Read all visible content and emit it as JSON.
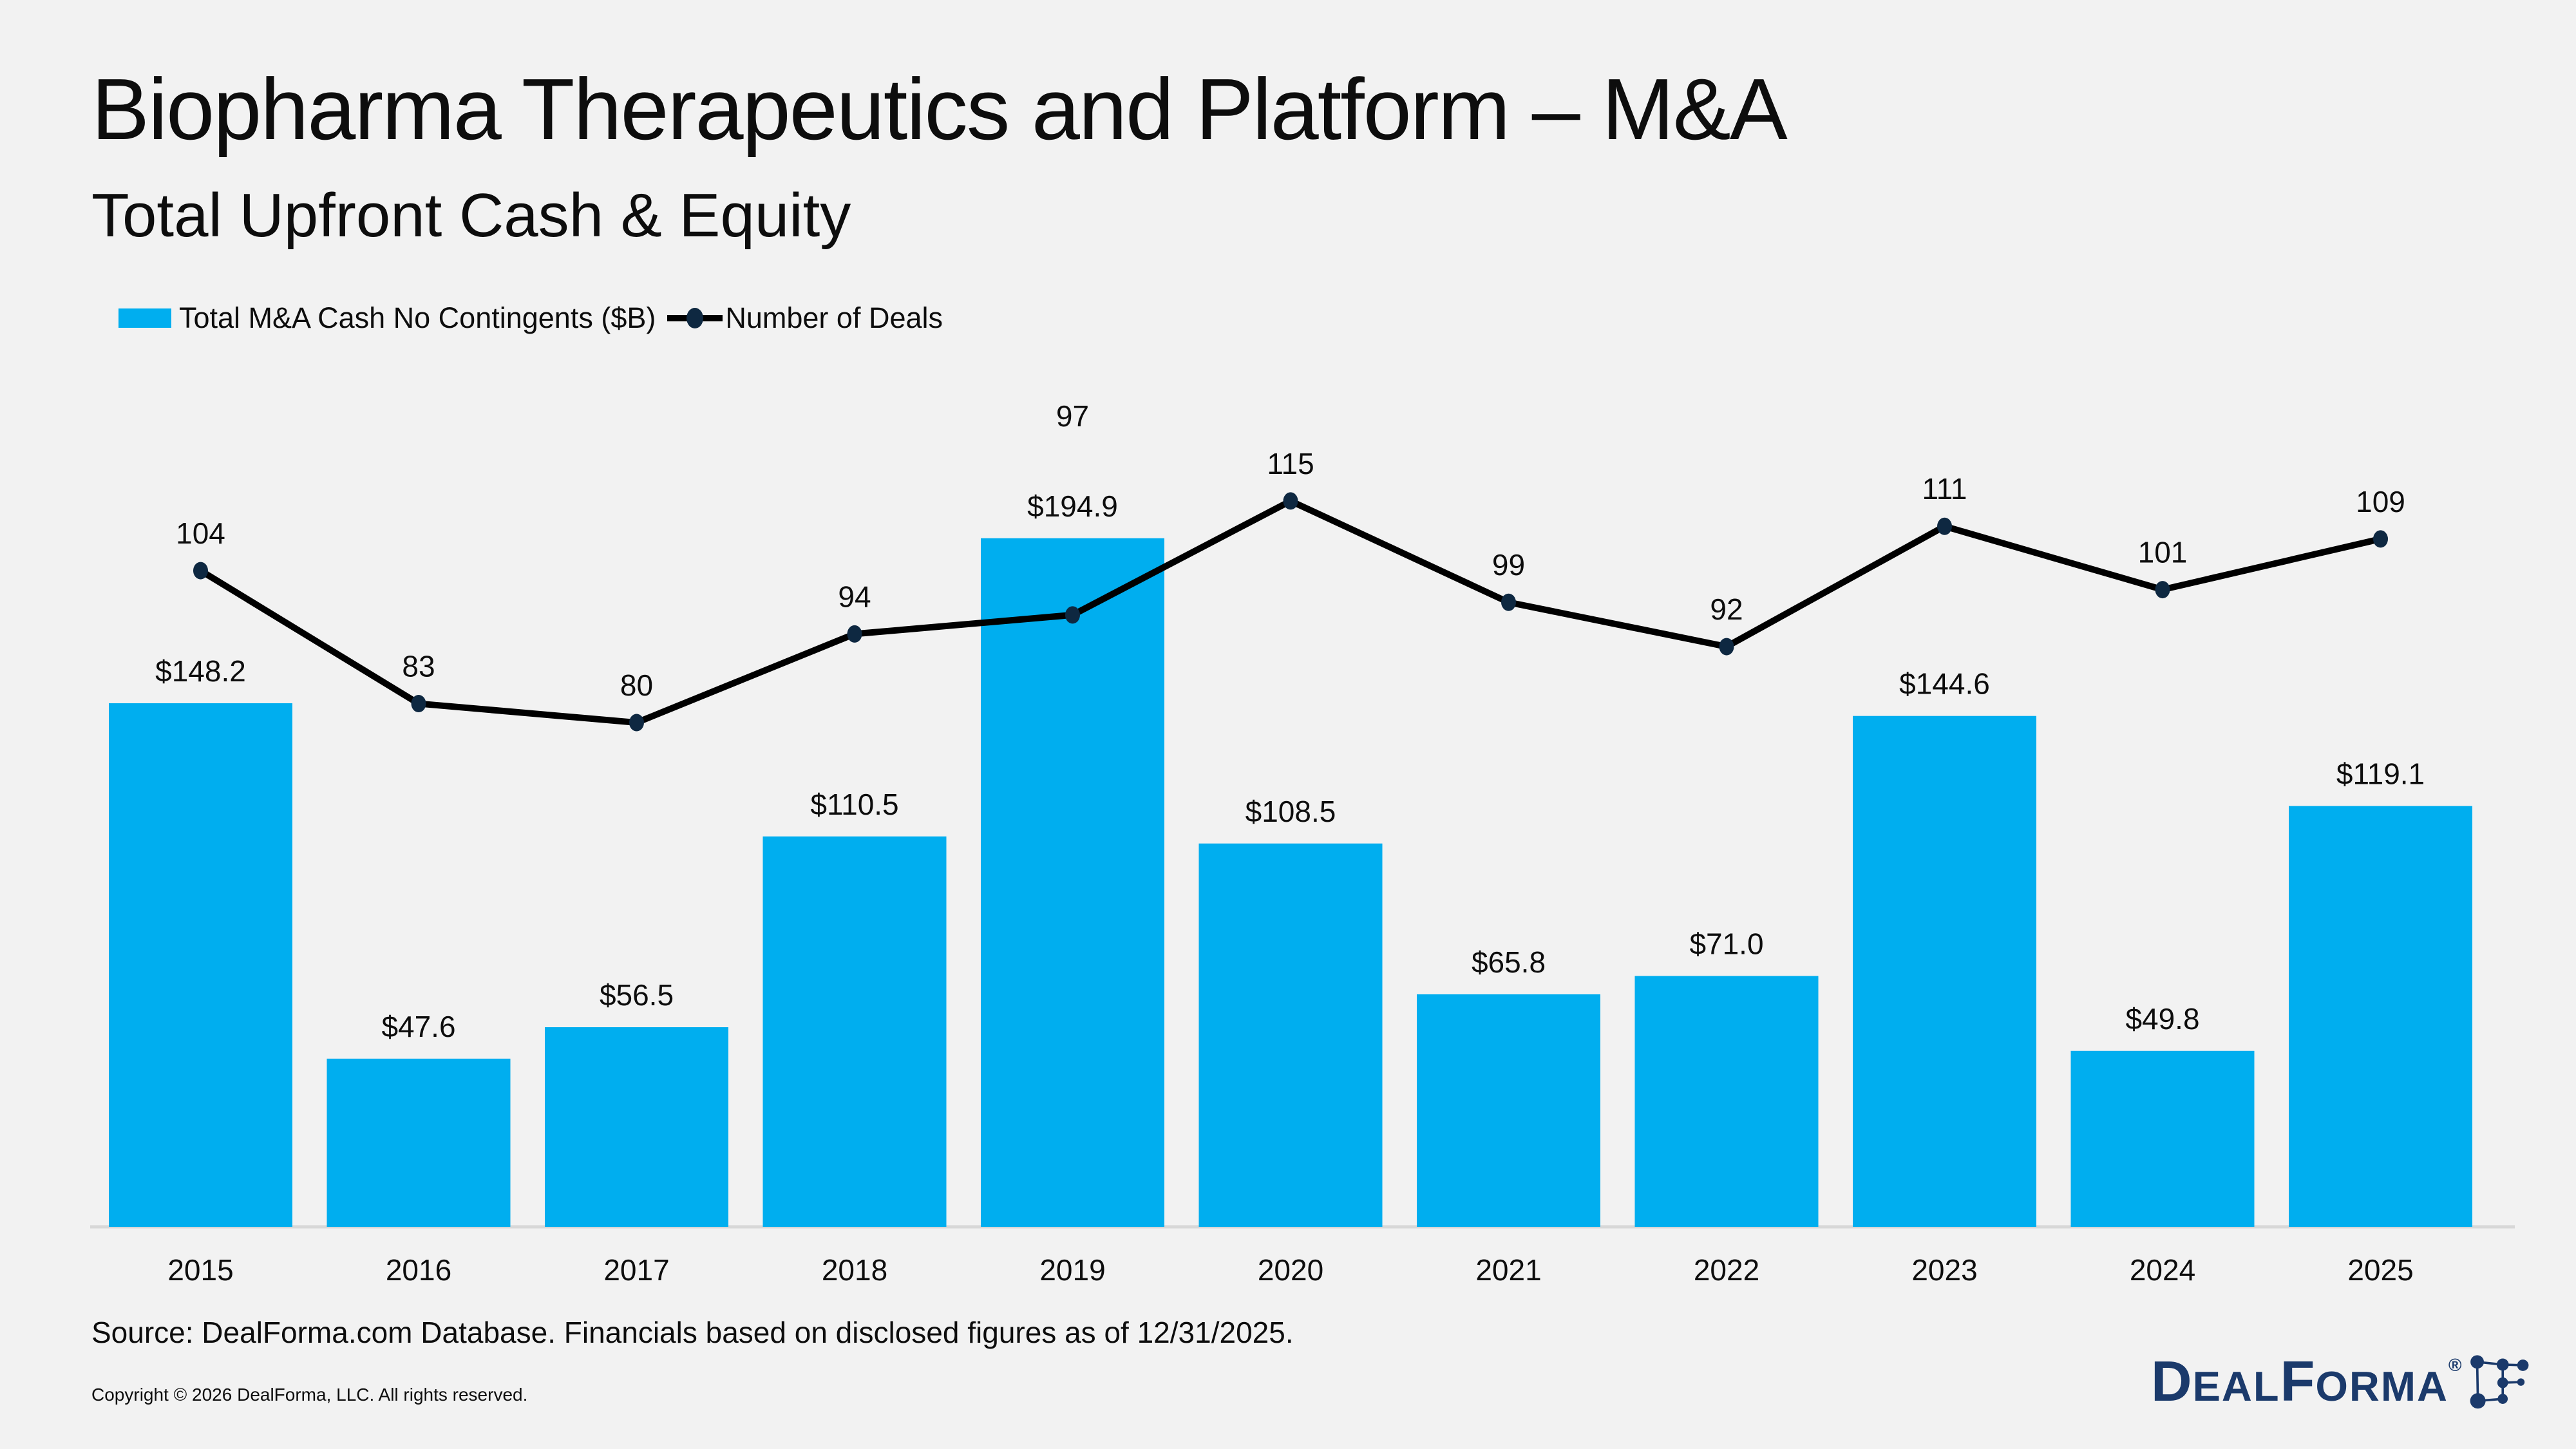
{
  "chart_data": {
    "type": "combo",
    "title": "Biopharma Therapeutics and Platform – M&A",
    "subtitle": "Total Upfront Cash & Equity",
    "categories": [
      "2015",
      "2016",
      "2017",
      "2018",
      "2019",
      "2020",
      "2021",
      "2022",
      "2023",
      "2024",
      "2025"
    ],
    "series": [
      {
        "name": "Total M&A Cash No Contingents ($B)",
        "type": "bar",
        "color": "#00AEEF",
        "values": [
          148.2,
          47.6,
          56.5,
          110.5,
          194.9,
          108.5,
          65.8,
          71.0,
          144.6,
          49.8,
          119.1
        ],
        "value_labels": [
          "$148.2",
          "$47.6",
          "$56.5",
          "$110.5",
          "$194.9",
          "$108.5",
          "$65.8",
          "$71.0",
          "$144.6",
          "$49.8",
          "$119.1"
        ]
      },
      {
        "name": "Number of Deals",
        "type": "line",
        "color": "#000000",
        "marker_color": "#0E2841",
        "values": [
          104,
          83,
          80,
          94,
          97,
          115,
          99,
          92,
          111,
          101,
          109
        ]
      }
    ],
    "xlabel": "",
    "ylabel": "",
    "grid": false,
    "value_axis_visible": false,
    "legend_position": "top-left",
    "axis_line_color": "#D8D8D8",
    "background_color": "#F2F2F2",
    "text_color": "#0D0D0D",
    "ylim_bar_est": [
      0,
      220
    ],
    "ylim_line_est": [
      0,
      140
    ]
  },
  "footer": {
    "source": "Source: DealForma.com Database. Financials based on disclosed figures as of 12/31/2025.",
    "copyright": "Copyright © 2026 DealForma, LLC. All rights reserved."
  },
  "logo": {
    "d": "D",
    "eal": "EAL",
    "f": "F",
    "orma": "ORMA",
    "reg": "®",
    "color": "#1B3A6B"
  }
}
